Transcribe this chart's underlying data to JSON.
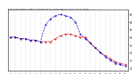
{
  "title": "Milwaukee Weather Outdoor Temperature (vs) THSW Index per Hour (Last 24 Hours)",
  "temp_color": "#cc0000",
  "thsw_color": "#0000cc",
  "background_color": "#ffffff",
  "plot_bg_color": "#ffffff",
  "grid_color": "#999999",
  "ylim": [
    28,
    68
  ],
  "ytick_values": [
    30,
    35,
    40,
    45,
    50,
    55,
    60,
    65
  ],
  "ytick_labels": [
    "30",
    "35",
    "40",
    "45",
    "50",
    "55",
    "60",
    "65"
  ],
  "hours": [
    0,
    1,
    2,
    3,
    4,
    5,
    6,
    7,
    8,
    9,
    10,
    11,
    12,
    13,
    14,
    15,
    16,
    17,
    18,
    19,
    20,
    21,
    22,
    23
  ],
  "temp": [
    50,
    50,
    49,
    49,
    48,
    48,
    47,
    47,
    47,
    49,
    51,
    52,
    52,
    51,
    50,
    50,
    46,
    43,
    40,
    38,
    36,
    34,
    33,
    32
  ],
  "thsw": [
    50,
    50,
    49,
    49,
    48,
    48,
    47,
    58,
    62,
    64,
    65,
    64,
    63,
    60,
    52,
    49,
    46,
    43,
    40,
    37,
    35,
    33,
    32,
    31
  ]
}
